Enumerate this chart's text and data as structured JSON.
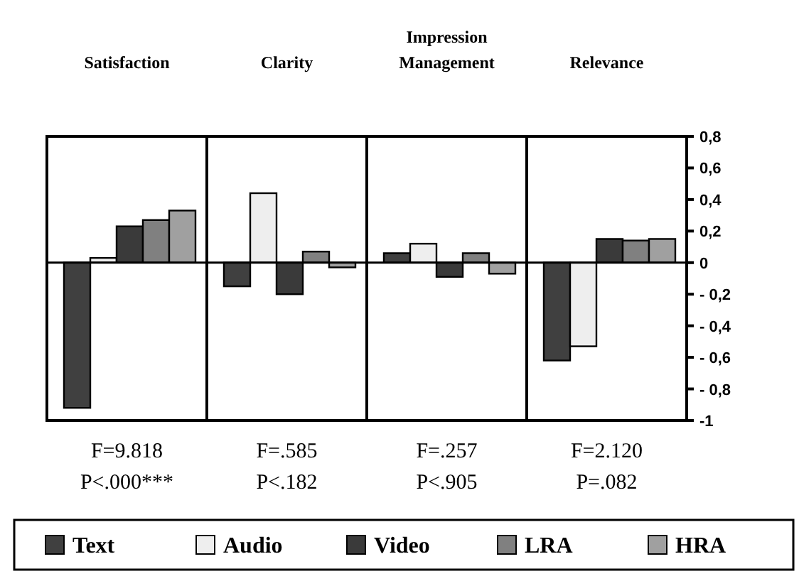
{
  "chart_data": {
    "type": "bar",
    "categories": [
      "Satisfaction",
      "Clarity",
      "Impression Management",
      "Relevance"
    ],
    "series": [
      {
        "name": "Text",
        "color": "#404040",
        "values": [
          -0.92,
          -0.15,
          0.06,
          -0.62
        ]
      },
      {
        "name": "Audio",
        "color": "#eeeeee",
        "values": [
          0.03,
          0.44,
          0.12,
          -0.53
        ]
      },
      {
        "name": "Video",
        "color": "#3a3a3a",
        "values": [
          0.23,
          -0.2,
          -0.09,
          0.15
        ]
      },
      {
        "name": "LRA",
        "color": "#808080",
        "values": [
          0.27,
          0.07,
          0.06,
          0.14
        ]
      },
      {
        "name": "HRA",
        "color": "#a0a0a0",
        "values": [
          0.33,
          -0.03,
          -0.07,
          0.15
        ]
      }
    ],
    "ylim": [
      -1,
      0.8
    ],
    "yticks": [
      {
        "value": 0.8,
        "label": "0,8"
      },
      {
        "value": 0.6,
        "label": "0,6"
      },
      {
        "value": 0.4,
        "label": "0,4"
      },
      {
        "value": 0.2,
        "label": "0,2"
      },
      0,
      {
        "value": -0.2,
        "label": "- 0,2"
      },
      {
        "value": -0.4,
        "label": "- 0,4"
      },
      {
        "value": -0.6,
        "label": "- 0,6"
      },
      {
        "value": -0.8,
        "label": "- 0,8"
      },
      -1
    ],
    "annotations": [
      "F=9.818",
      "P<.000***",
      "F=.585",
      "P<.182",
      "F=.257",
      "P<.905",
      "F=2.120",
      "P=.082"
    ],
    "grid": false,
    "legend": "bottom"
  }
}
